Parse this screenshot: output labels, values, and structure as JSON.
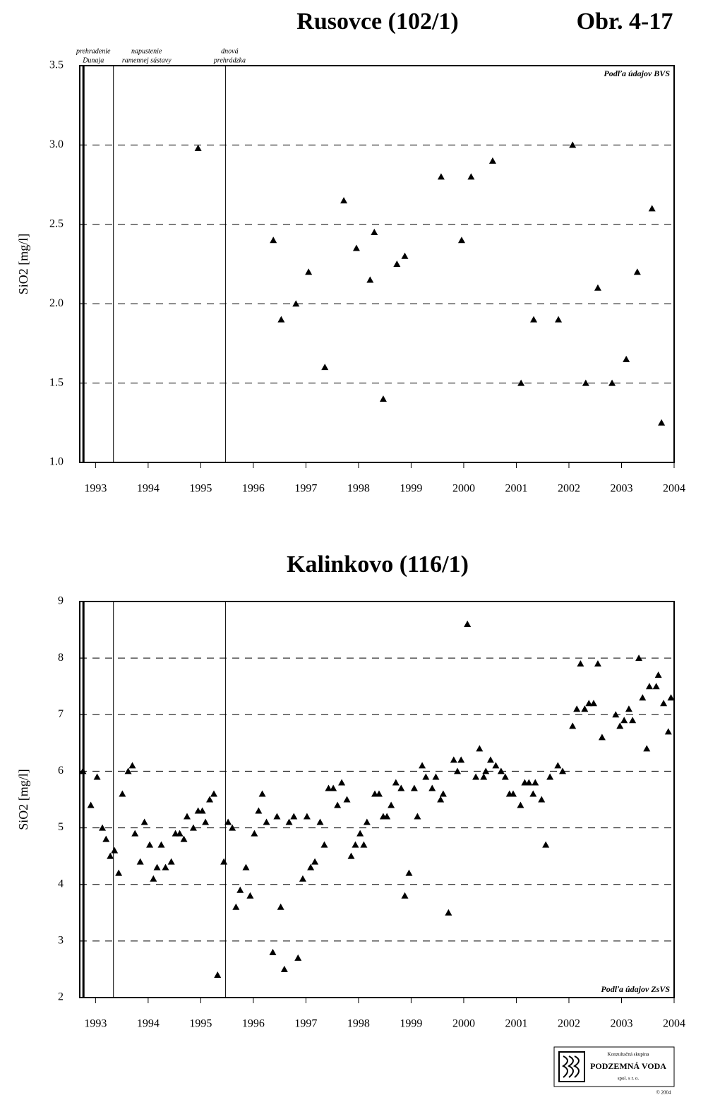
{
  "figure_label": "Obr. 4-17",
  "chart_data": [
    {
      "type": "scatter",
      "title": "Rusovce (102/1)",
      "y_label": "SiO2 [mg/l]",
      "note": "Podľa údajov BVS",
      "marker": "triangle",
      "color": "#000000",
      "grid": true,
      "xlim": [
        1992.7,
        2004
      ],
      "xticks": [
        1993,
        1994,
        1995,
        1996,
        1997,
        1998,
        1999,
        2000,
        2001,
        2002,
        2003,
        2004
      ],
      "ylim": [
        1.0,
        3.5
      ],
      "yticks": [
        {
          "value": 1,
          "label": "1.0"
        },
        1.5,
        {
          "value": 2,
          "label": "2.0"
        },
        2.5,
        {
          "value": 3,
          "label": "3.0"
        },
        3.5
      ],
      "events": [
        {
          "x": 1992.77,
          "label_lines": [
            "prehradenie",
            "Dunaja"
          ]
        },
        {
          "x": 1993.34,
          "label_lines": [
            "napustenie",
            "ramennej sústavy"
          ]
        },
        {
          "x": 1995.47,
          "label_lines": [
            "dnová",
            "prehrádzka"
          ]
        }
      ],
      "x": [
        1994.95,
        1996.38,
        1996.53,
        1996.81,
        1997.05,
        1997.36,
        1997.72,
        1997.96,
        1998.22,
        1998.3,
        1998.47,
        1998.73,
        1998.88,
        1999.57,
        1999.96,
        2000.14,
        2000.55,
        2001.09,
        2001.33,
        2001.8,
        2002.07,
        2002.32,
        2002.55,
        2002.82,
        2003.09,
        2003.3,
        2003.58,
        2003.76
      ],
      "values": [
        2.98,
        2.4,
        1.9,
        2.0,
        2.2,
        1.6,
        2.65,
        2.35,
        2.15,
        2.45,
        1.4,
        2.25,
        2.3,
        2.8,
        2.4,
        2.8,
        2.9,
        1.5,
        1.9,
        1.9,
        3.0,
        1.5,
        2.1,
        1.5,
        1.65,
        2.2,
        2.6,
        1.25
      ]
    },
    {
      "type": "scatter",
      "title": "Kalinkovo (116/1)",
      "y_label": "SiO2 [mg/l]",
      "note": "Podľa údajov ZsVS",
      "marker": "triangle",
      "color": "#000000",
      "grid": true,
      "xlim": [
        1992.7,
        2004
      ],
      "xticks": [
        1993,
        1994,
        1995,
        1996,
        1997,
        1998,
        1999,
        2000,
        2001,
        2002,
        2003,
        2004
      ],
      "ylim": [
        2,
        9
      ],
      "yticks": [
        2,
        3,
        4,
        5,
        6,
        7,
        8,
        9
      ],
      "events": [
        {
          "x": 1992.77
        },
        {
          "x": 1993.34
        },
        {
          "x": 1995.47
        }
      ],
      "x": [
        1992.76,
        1992.91,
        1993.03,
        1993.13,
        1993.2,
        1993.28,
        1993.36,
        1993.44,
        1993.51,
        1993.62,
        1993.7,
        1993.75,
        1993.85,
        1993.93,
        1994.03,
        1994.1,
        1994.17,
        1994.25,
        1994.33,
        1994.44,
        1994.52,
        1994.6,
        1994.68,
        1994.74,
        1994.86,
        1994.95,
        1995.03,
        1995.09,
        1995.17,
        1995.25,
        1995.32,
        1995.44,
        1995.52,
        1995.6,
        1995.67,
        1995.75,
        1995.86,
        1995.94,
        1996.02,
        1996.1,
        1996.17,
        1996.25,
        1996.37,
        1996.45,
        1996.52,
        1996.59,
        1996.68,
        1996.77,
        1996.85,
        1996.94,
        1997.02,
        1997.09,
        1997.17,
        1997.27,
        1997.35,
        1997.43,
        1997.52,
        1997.6,
        1997.68,
        1997.78,
        1997.86,
        1997.94,
        1998.03,
        1998.1,
        1998.16,
        1998.31,
        1998.39,
        1998.47,
        1998.54,
        1998.62,
        1998.71,
        1998.81,
        1998.88,
        1998.96,
        1999.06,
        1999.12,
        1999.21,
        1999.28,
        1999.4,
        1999.47,
        1999.56,
        1999.61,
        1999.71,
        1999.81,
        1999.88,
        1999.95,
        2000.07,
        2000.23,
        2000.3,
        2000.38,
        2000.42,
        2000.51,
        2000.61,
        2000.71,
        2000.79,
        2000.87,
        2000.94,
        2001.08,
        2001.16,
        2001.24,
        2001.32,
        2001.36,
        2001.48,
        2001.56,
        2001.64,
        2001.79,
        2001.88,
        2002.07,
        2002.15,
        2002.22,
        2002.3,
        2002.38,
        2002.47,
        2002.55,
        2002.63,
        2002.89,
        2002.97,
        2003.05,
        2003.14,
        2003.21,
        2003.33,
        2003.4,
        2003.48,
        2003.53,
        2003.66,
        2003.7,
        2003.8,
        2003.89,
        2003.94
      ],
      "values": [
        6.0,
        5.4,
        5.9,
        5.0,
        4.8,
        4.5,
        4.6,
        4.2,
        5.6,
        6.0,
        6.1,
        4.9,
        4.4,
        5.1,
        4.7,
        4.1,
        4.3,
        4.7,
        4.3,
        4.4,
        4.9,
        4.9,
        4.8,
        5.2,
        5.0,
        5.3,
        5.3,
        5.1,
        5.5,
        5.6,
        2.4,
        4.4,
        5.1,
        5.0,
        3.6,
        3.9,
        4.3,
        3.8,
        4.9,
        5.3,
        5.6,
        5.1,
        2.8,
        5.2,
        3.6,
        2.5,
        5.1,
        5.2,
        2.7,
        4.1,
        5.2,
        4.3,
        4.4,
        5.1,
        4.7,
        5.7,
        5.7,
        5.4,
        5.8,
        5.5,
        4.5,
        4.7,
        4.9,
        4.7,
        5.1,
        5.6,
        5.6,
        5.2,
        5.2,
        5.4,
        5.8,
        5.7,
        3.8,
        4.2,
        5.7,
        5.2,
        6.1,
        5.9,
        5.7,
        5.9,
        5.5,
        5.6,
        3.5,
        6.2,
        6.0,
        6.2,
        8.6,
        5.9,
        6.4,
        5.9,
        6.0,
        6.2,
        6.1,
        6.0,
        5.9,
        5.6,
        5.6,
        5.4,
        5.8,
        5.8,
        5.6,
        5.8,
        5.5,
        4.7,
        5.9,
        6.1,
        6.0,
        6.8,
        7.1,
        7.9,
        7.1,
        7.2,
        7.2,
        7.9,
        6.6,
        7.0,
        6.8,
        6.9,
        7.1,
        6.9,
        8.0,
        7.3,
        6.4,
        7.5,
        7.5,
        7.7,
        7.2,
        6.7,
        7.3
      ]
    }
  ],
  "logo": {
    "line1": "Konzultačná skupina",
    "line2": "PODZEMNÁ VODA",
    "line3": "spol. s r. o.",
    "copyright": "© 2004"
  }
}
